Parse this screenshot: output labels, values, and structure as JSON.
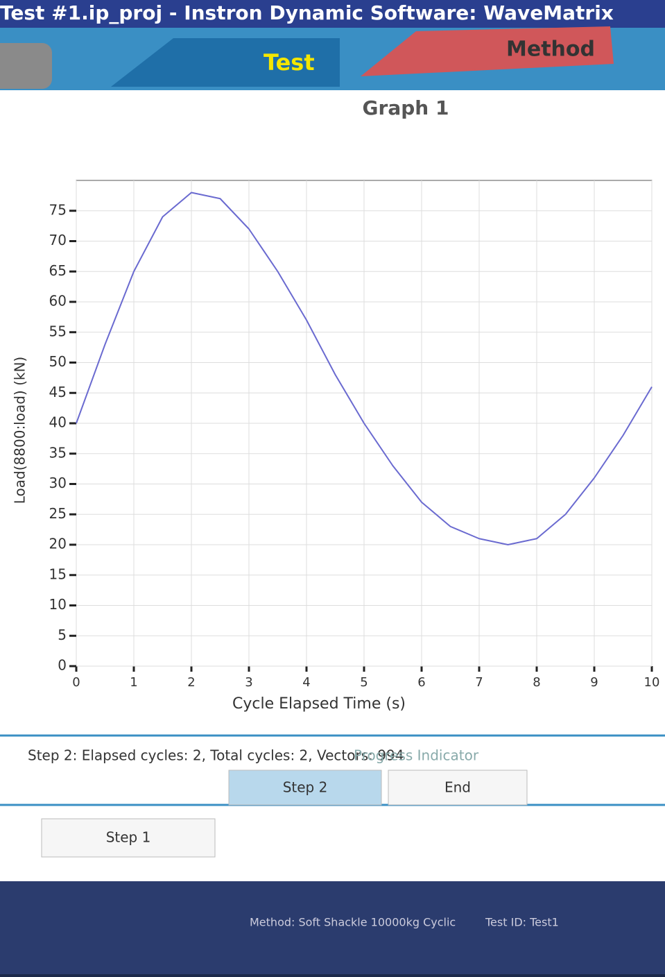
{
  "window": {
    "title": "Test #1.ip_proj - Instron Dynamic Software: WaveMatrix"
  },
  "tabs": [
    "Test",
    "Method"
  ],
  "chart_data": {
    "type": "line",
    "title": "Graph 1",
    "x_label": "Cycle Elapsed Time (s)",
    "y_label": "Load(8800:load) (kN)",
    "x": [
      0,
      0.5,
      1,
      1.5,
      2,
      2.5,
      3,
      3.5,
      4,
      4.5,
      5,
      5.5,
      6,
      6.5,
      7,
      7.5,
      8,
      8.5,
      9,
      9.5,
      10
    ],
    "series": [
      {
        "color": "#6a6ad0",
        "values": [
          40,
          53,
          65,
          74,
          78,
          77,
          72,
          65,
          57,
          48,
          40,
          33,
          27,
          23,
          21,
          20,
          21,
          25,
          31,
          38,
          46
        ]
      }
    ],
    "xlim": [
      0,
      10
    ],
    "xticks": [
      0,
      1,
      2,
      3,
      4,
      5,
      6,
      7,
      8,
      9,
      10
    ],
    "ylim": [
      0,
      80
    ],
    "yticks": [
      0,
      5,
      10,
      15,
      20,
      25,
      30,
      35,
      40,
      45,
      50,
      55,
      60,
      65,
      70,
      75
    ],
    "grid": true
  },
  "status": "Step 2: Elapsed cycles: 2, Total cycles: 2, Vectors: 994",
  "progress": {
    "title": "Progress Indicator",
    "steps": [
      "Step 1",
      "Step 2",
      "End"
    ]
  },
  "footer": {
    "method": "Method: Soft Shackle 10000kg Cyclic",
    "test_id": "Test ID: Test1"
  }
}
